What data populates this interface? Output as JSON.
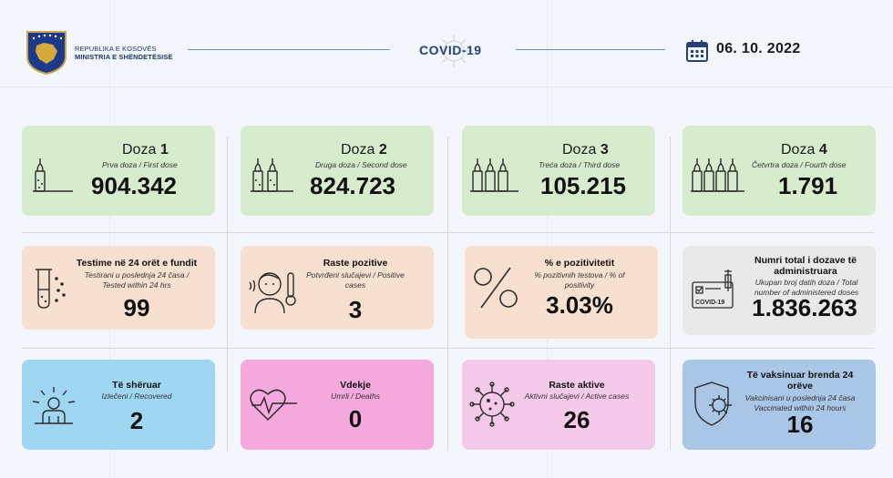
{
  "header": {
    "ministry_line1": "REPUBLIKA E KOSOVËS",
    "ministry_line2": "MINISTRIA E SHËNDETËSISË",
    "title": "COVID-19",
    "date": "06. 10. 2022"
  },
  "doses": [
    {
      "label_word": "Doza",
      "label_num": "1",
      "subtitle": "Prva doza / First dose",
      "value": "904.342",
      "color": "#d7ebcd"
    },
    {
      "label_word": "Doza",
      "label_num": "2",
      "subtitle": "Druga doza / Second dose",
      "value": "824.723",
      "color": "#d7ebcd"
    },
    {
      "label_word": "Doza",
      "label_num": "3",
      "subtitle": "Treća doza / Third dose",
      "value": "105.215",
      "color": "#d7ebcd"
    },
    {
      "label_word": "Doza",
      "label_num": "4",
      "subtitle": "Četvrtra doza / Fourth dose",
      "value": "1.791",
      "color": "#d7ebcd"
    }
  ],
  "stats_row2": [
    {
      "title": "Testime në 24 orët e fundit",
      "subtitle": "Testirani u poslednja 24 časa / Tested within 24 hrs",
      "value": "99",
      "color": "#f7e0d0"
    },
    {
      "title": "Raste pozitive",
      "subtitle": "Potvrđeni slučajevi / Positive cases",
      "value": "3",
      "color": "#f7e0d0"
    },
    {
      "title": "% e pozitivitetit",
      "subtitle": "% pozitivnih testova / % of positivity",
      "value": "3.03%",
      "color": "#f7e0d0"
    },
    {
      "title": "Numri total i dozave të administruara",
      "subtitle": "Ukupan broj datih doza / Total number of administered doses",
      "value": "1.836.263",
      "color": "#e9e9e9"
    }
  ],
  "stats_row3": [
    {
      "title": "Të shëruar",
      "subtitle": "Izlečeni / Recovered",
      "value": "2",
      "color": "#9fd6f2"
    },
    {
      "title": "Vdekje",
      "subtitle": "Umrli / Deaths",
      "value": "0",
      "color": "#f5a9dc"
    },
    {
      "title": "Raste aktive",
      "subtitle": "Aktivni slučajevi / Active cases",
      "value": "26",
      "color": "#f5c9ea"
    },
    {
      "title": "Të vaksinuar brenda 24 orëve",
      "subtitle": "Vakcinisani u poslednja 24 časa Vaccinated within 24 hours",
      "value": "16",
      "color": "#a9c6e6"
    }
  ],
  "icons": {
    "dose1": "vaccine-vial-icon",
    "dose2": "vaccine-vials-icon",
    "dose3": "vaccine-vials-icon",
    "dose4": "vaccine-vials-icon",
    "tests": "test-tube-icon",
    "positive": "sick-person-thermometer-icon",
    "positivity": "percent-icon",
    "total": "covid-certificate-syringe-icon",
    "recovered": "recovered-person-icon",
    "deaths": "heartbeat-icon",
    "active": "virus-icon",
    "vaccinated24": "shield-virus-icon",
    "calendar": "calendar-icon"
  }
}
